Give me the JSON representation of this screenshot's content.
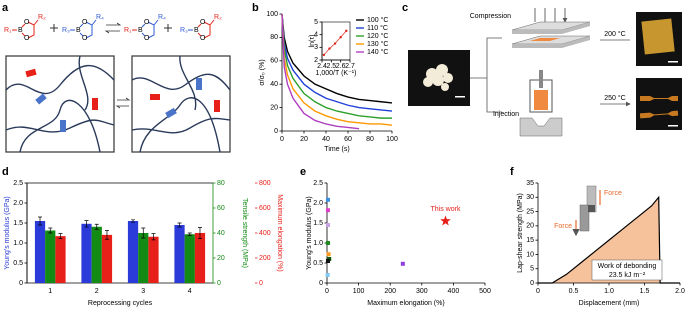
{
  "panel_labels": [
    "a",
    "b",
    "c",
    "d",
    "e",
    "f"
  ],
  "diagram_a": {
    "ring_atom": "O",
    "molecules": [
      {
        "left": "R₁",
        "boron": "B",
        "ring": "R₂",
        "left_color": "#e2231a",
        "ring_color": "#e2231a"
      },
      {
        "left": "R₃",
        "boron": "B",
        "ring": "R₄",
        "left_color": "#2f5bd3",
        "ring_color": "#2f5bd3"
      },
      {
        "left": "R₁",
        "boron": "B",
        "ring": "R₄",
        "left_color": "#e2231a",
        "ring_color": "#2f5bd3"
      },
      {
        "left": "R₃",
        "boron": "B",
        "ring": "R₂",
        "left_color": "#2f5bd3",
        "ring_color": "#e2231a"
      }
    ]
  },
  "diagram_c": {
    "steps": [
      "Compression",
      "Injection"
    ],
    "temperatures": [
      "200 °C",
      "250 °C"
    ]
  },
  "chart_data": [
    {
      "type": "line",
      "x_label": "Time (s)",
      "y_label": "σ/σ₀ (%)",
      "x": [
        0,
        2,
        5,
        10,
        20,
        30,
        40,
        50,
        60,
        70,
        80,
        90,
        100
      ],
      "xlim": [
        0,
        100
      ],
      "xticks": [
        0,
        20,
        40,
        60,
        80,
        100
      ],
      "ylim": [
        0,
        100
      ],
      "yticks": [
        0,
        20,
        40,
        60,
        80,
        100
      ],
      "series": [
        {
          "name": "100 °C",
          "color": "#000000",
          "values": [
            100,
            80,
            68,
            58,
            47,
            40,
            36,
            32,
            29,
            27,
            26,
            25,
            24
          ]
        },
        {
          "name": "110 °C",
          "color": "#2040d8",
          "values": [
            100,
            75,
            62,
            52,
            40,
            33,
            28,
            25,
            22,
            20,
            19,
            18,
            17
          ]
        },
        {
          "name": "120 °C",
          "color": "#2ca02c",
          "values": [
            100,
            70,
            56,
            45,
            32,
            25,
            20,
            17,
            15,
            13,
            12,
            11,
            11
          ]
        },
        {
          "name": "130 °C",
          "color": "#ff9900",
          "values": [
            100,
            62,
            48,
            36,
            24,
            17,
            13,
            10,
            8,
            7,
            6,
            6,
            5
          ]
        },
        {
          "name": "140 °C",
          "color": "#b040c0",
          "values": [
            100,
            55,
            40,
            28,
            15,
            9,
            6,
            4,
            3,
            2,
            null,
            null,
            null
          ]
        }
      ]
    },
    {
      "type": "line",
      "markers": true,
      "x_label": "1,000/T (K⁻¹)",
      "y_label": "ln(τ)",
      "x": [
        2.42,
        2.48,
        2.54,
        2.6,
        2.66
      ],
      "xlim": [
        2.4,
        2.7
      ],
      "xticks": [
        2.4,
        2.5,
        2.6,
        2.7
      ],
      "ylim": [
        2,
        5
      ],
      "yticks": [
        2,
        3,
        4,
        5
      ],
      "series": [
        {
          "color": "#e2231a",
          "values": [
            2.4,
            2.9,
            3.3,
            3.8,
            4.3
          ]
        }
      ]
    },
    {
      "type": "bar",
      "x_label": "Reprocessing cycles",
      "y_label": "Young's modulus (GPa)",
      "y2_label": "Tensile strength (MPa)",
      "y3_label": "Maximum elongation (%)",
      "categories": [
        "1",
        "2",
        "3",
        "4"
      ],
      "ylim": [
        0,
        2.5
      ],
      "yticks": [
        0,
        0.5,
        {
          "value": 1,
          "label": "1.0"
        },
        1.5,
        {
          "value": 2,
          "label": "2.0"
        },
        2.5
      ],
      "y2lim": [
        0,
        80
      ],
      "y2ticks": [
        0,
        20,
        40,
        60,
        80
      ],
      "y3lim": [
        0,
        800
      ],
      "y3ticks": [
        0,
        200,
        400,
        600,
        800
      ],
      "series": [
        {
          "color": "#2a3bd9",
          "values": [
            1.55,
            1.48,
            1.55,
            1.45
          ],
          "errors": [
            0.1,
            0.08,
            0.03,
            0.05
          ]
        },
        {
          "color": "#138a13",
          "axis": "y2",
          "values": [
            42,
            45,
            40,
            39
          ],
          "errors": [
            2,
            2,
            4,
            1
          ]
        },
        {
          "color": "#e8201a",
          "axis": "y3",
          "values": [
            375,
            385,
            370,
            400
          ],
          "errors": [
            20,
            35,
            25,
            45
          ]
        }
      ]
    },
    {
      "type": "scatter",
      "x_label": "Maximum elongation (%)",
      "y_label": "Young's modulus (GPa)",
      "annotation": "This work",
      "xlim": [
        0,
        500
      ],
      "xticks": [
        0,
        100,
        200,
        300,
        400,
        500
      ],
      "ylim": [
        0,
        2.5
      ],
      "yticks": [
        0,
        0.5,
        {
          "value": 1,
          "label": "1.0"
        },
        1.5,
        {
          "value": 2,
          "label": "2.0"
        },
        2.5
      ],
      "series": [
        {
          "color": "#3a8ee0",
          "x": [
            3
          ],
          "values": [
            2.08
          ]
        },
        {
          "color": "#e040c8",
          "x": [
            3
          ],
          "values": [
            1.82
          ]
        },
        {
          "color": "#c8a0e8",
          "x": [
            3
          ],
          "values": [
            1.45
          ]
        },
        {
          "color": "#1a8a1a",
          "x": [
            3
          ],
          "values": [
            1.0
          ]
        },
        {
          "color": "#ff9a20",
          "x": [
            5
          ],
          "values": [
            0.72
          ]
        },
        {
          "color": "#0a5a0a",
          "x": [
            7
          ],
          "values": [
            0.6
          ]
        },
        {
          "color": "#111111",
          "x": [
            3
          ],
          "values": [
            0.55
          ]
        },
        {
          "color": "#80c8f0",
          "x": [
            2
          ],
          "values": [
            0.2
          ]
        },
        {
          "color": "#9040e0",
          "x": [
            240
          ],
          "values": [
            0.48
          ]
        },
        {
          "color": "#e8201a",
          "marker": "star",
          "x": [
            375
          ],
          "values": [
            1.55
          ]
        }
      ]
    },
    {
      "type": "area",
      "x_label": "Displacement (mm)",
      "y_label": "Lap-shear strength (MPa)",
      "force_labels": [
        "Force",
        "Force"
      ],
      "work_label": "Work of debonding",
      "work_value": "23.5 kJ m⁻²",
      "x": [
        0,
        0.2,
        0.4,
        0.6,
        0.8,
        1.0,
        1.2,
        1.4,
        1.6,
        1.7,
        1.72,
        2.0
      ],
      "xlim": [
        0,
        2
      ],
      "xticks": [
        0,
        0.5,
        {
          "value": 1,
          "label": "1.0"
        },
        1.5,
        {
          "value": 2,
          "label": "2.0"
        }
      ],
      "ylim": [
        0,
        35
      ],
      "yticks": [
        0,
        5,
        10,
        15,
        20,
        25,
        30,
        35
      ],
      "series": [
        {
          "color": "#f6c29c",
          "values": [
            0,
            0,
            3,
            7,
            11,
            15,
            19,
            23,
            27,
            30,
            0,
            0
          ]
        }
      ]
    }
  ]
}
